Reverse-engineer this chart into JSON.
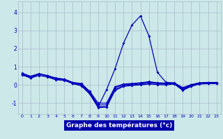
{
  "xlabel": "Graphe des températures (°c)",
  "background_color": "#cce8e8",
  "grid_color": "#aabbcc",
  "line_color": "#0000bb",
  "xlabel_bg": "#0000aa",
  "xlabel_fg": "#ffffff",
  "xlim": [
    -0.5,
    23.5
  ],
  "ylim": [
    -1.6,
    4.6
  ],
  "yticks": [
    -1,
    0,
    1,
    2,
    3,
    4
  ],
  "xticks": [
    0,
    1,
    2,
    3,
    4,
    5,
    6,
    7,
    8,
    9,
    10,
    11,
    12,
    13,
    14,
    15,
    16,
    17,
    18,
    19,
    20,
    21,
    22,
    23
  ],
  "series1": [
    0.6,
    0.4,
    0.6,
    0.5,
    0.3,
    0.3,
    0.1,
    0.0,
    -0.45,
    -1.2,
    -1.2,
    -0.25,
    -0.05,
    0.0,
    0.05,
    0.1,
    0.08,
    0.05,
    0.08,
    -0.25,
    -0.05,
    0.08,
    0.1,
    0.1
  ],
  "series2": [
    0.6,
    0.45,
    0.6,
    0.5,
    0.35,
    0.3,
    0.12,
    0.05,
    -0.4,
    -1.1,
    -1.1,
    -0.15,
    0.0,
    0.05,
    0.1,
    0.15,
    0.1,
    0.08,
    0.1,
    -0.2,
    0.0,
    0.1,
    0.12,
    0.12
  ],
  "series3": [
    0.65,
    0.48,
    0.62,
    0.52,
    0.38,
    0.32,
    0.14,
    0.08,
    -0.35,
    -1.0,
    -1.0,
    -0.1,
    0.05,
    0.08,
    0.12,
    0.18,
    0.12,
    0.1,
    0.12,
    -0.15,
    0.02,
    0.12,
    0.14,
    0.14
  ],
  "series4": [
    0.55,
    0.38,
    0.52,
    0.44,
    0.28,
    0.25,
    0.07,
    -0.05,
    -0.5,
    -1.25,
    -1.22,
    -0.3,
    -0.08,
    -0.03,
    0.0,
    0.05,
    0.02,
    0.0,
    0.05,
    -0.3,
    -0.08,
    0.05,
    0.07,
    0.07
  ],
  "peak": [
    0.6,
    0.4,
    0.6,
    0.5,
    0.3,
    0.3,
    0.1,
    0.0,
    -0.45,
    -1.2,
    -0.25,
    0.9,
    2.3,
    3.3,
    3.8,
    2.7,
    0.7,
    0.15,
    0.1,
    -0.25,
    -0.05,
    0.08,
    0.1,
    0.1
  ]
}
